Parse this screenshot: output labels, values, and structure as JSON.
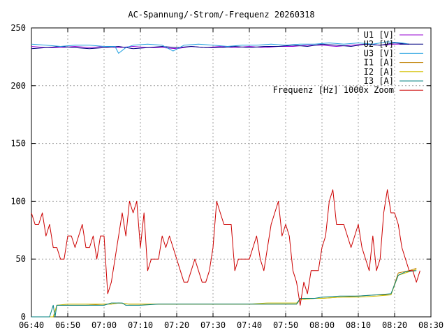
{
  "chart_data": {
    "type": "line",
    "title": "AC-Spannung/-Strom/-Frequenz 20260318",
    "xlabel": "",
    "ylabel": "",
    "xlim": [
      "06:40",
      "08:30"
    ],
    "ylim": [
      0,
      250
    ],
    "x_ticks": [
      "06:40",
      "06:50",
      "07:00",
      "07:10",
      "07:20",
      "07:30",
      "07:40",
      "07:50",
      "08:00",
      "08:10",
      "08:20",
      "08:30"
    ],
    "y_ticks": [
      "0",
      "50",
      "100",
      "150",
      "200",
      "250"
    ],
    "grid": true,
    "legend_position": "top-right",
    "series": [
      {
        "name": "U1 [V]",
        "color": "#9400d3",
        "points": [
          [
            "06:40",
            234
          ],
          [
            "06:44",
            233
          ],
          [
            "06:48",
            233
          ],
          [
            "06:52",
            234
          ],
          [
            "06:56",
            233
          ],
          [
            "07:00",
            234
          ],
          [
            "07:04",
            233
          ],
          [
            "07:08",
            234
          ],
          [
            "07:12",
            233
          ],
          [
            "07:16",
            233
          ],
          [
            "07:20",
            232
          ],
          [
            "07:24",
            234
          ],
          [
            "07:28",
            233
          ],
          [
            "07:32",
            234
          ],
          [
            "07:36",
            233
          ],
          [
            "07:40",
            234
          ],
          [
            "07:44",
            233
          ],
          [
            "07:48",
            234
          ],
          [
            "07:52",
            234
          ],
          [
            "07:56",
            235
          ],
          [
            "08:00",
            235
          ],
          [
            "08:04",
            234
          ],
          [
            "08:08",
            235
          ],
          [
            "08:12",
            236
          ],
          [
            "08:16",
            235
          ],
          [
            "08:20",
            236
          ],
          [
            "08:24",
            236
          ]
        ]
      },
      {
        "name": "U2 [V]",
        "color": "#000080",
        "points": [
          [
            "06:40",
            232
          ],
          [
            "06:44",
            233
          ],
          [
            "06:48",
            234
          ],
          [
            "06:52",
            233
          ],
          [
            "06:56",
            232
          ],
          [
            "07:00",
            233
          ],
          [
            "07:04",
            234
          ],
          [
            "07:08",
            232
          ],
          [
            "07:12",
            233
          ],
          [
            "07:16",
            234
          ],
          [
            "07:20",
            233
          ],
          [
            "07:24",
            234
          ],
          [
            "07:28",
            233
          ],
          [
            "07:32",
            233
          ],
          [
            "07:36",
            234
          ],
          [
            "07:40",
            233
          ],
          [
            "07:44",
            234
          ],
          [
            "07:48",
            234
          ],
          [
            "07:52",
            235
          ],
          [
            "07:56",
            234
          ],
          [
            "08:00",
            236
          ],
          [
            "08:04",
            235
          ],
          [
            "08:08",
            234
          ],
          [
            "08:12",
            236
          ],
          [
            "08:16",
            235
          ],
          [
            "08:20",
            237
          ],
          [
            "08:24",
            236
          ]
        ]
      },
      {
        "name": "U3 [V]",
        "color": "#20a0e0",
        "points": [
          [
            "06:40",
            236
          ],
          [
            "06:44",
            235
          ],
          [
            "06:48",
            234
          ],
          [
            "06:52",
            235
          ],
          [
            "06:56",
            235
          ],
          [
            "07:00",
            234
          ],
          [
            "07:03",
            234
          ],
          [
            "07:04",
            228
          ],
          [
            "07:06",
            233
          ],
          [
            "07:08",
            235
          ],
          [
            "07:12",
            236
          ],
          [
            "07:16",
            235
          ],
          [
            "07:19",
            230
          ],
          [
            "07:22",
            235
          ],
          [
            "07:26",
            236
          ],
          [
            "07:30",
            235
          ],
          [
            "07:34",
            234
          ],
          [
            "07:38",
            235
          ],
          [
            "07:42",
            235
          ],
          [
            "07:46",
            236
          ],
          [
            "07:50",
            235
          ],
          [
            "07:54",
            236
          ],
          [
            "07:58",
            236
          ],
          [
            "08:02",
            237
          ],
          [
            "08:06",
            236
          ],
          [
            "08:10",
            237
          ],
          [
            "08:14",
            236
          ],
          [
            "08:18",
            238
          ],
          [
            "08:22",
            237
          ],
          [
            "08:24",
            236
          ]
        ]
      },
      {
        "name": "I1 [A]",
        "color": "#c08000",
        "points": [
          [
            "06:40",
            0
          ],
          [
            "06:46",
            0
          ],
          [
            "06:47",
            10
          ],
          [
            "06:50",
            10
          ],
          [
            "06:55",
            10
          ],
          [
            "07:00",
            11
          ],
          [
            "07:02",
            11
          ],
          [
            "07:04",
            12
          ],
          [
            "07:07",
            11
          ],
          [
            "07:10",
            11
          ],
          [
            "07:15",
            11
          ],
          [
            "07:20",
            11
          ],
          [
            "07:25",
            11
          ],
          [
            "07:30",
            11
          ],
          [
            "07:35",
            11
          ],
          [
            "07:40",
            11
          ],
          [
            "07:45",
            11
          ],
          [
            "07:50",
            11
          ],
          [
            "07:53",
            11
          ],
          [
            "07:54",
            15
          ],
          [
            "07:58",
            16
          ],
          [
            "08:00",
            16
          ],
          [
            "08:05",
            17
          ],
          [
            "08:10",
            18
          ],
          [
            "08:15",
            19
          ],
          [
            "08:19",
            19
          ],
          [
            "08:21",
            38
          ],
          [
            "08:24",
            40
          ],
          [
            "08:26",
            42
          ]
        ]
      },
      {
        "name": "I2 [A]",
        "color": "#d4c000",
        "points": [
          [
            "06:40",
            0
          ],
          [
            "06:46",
            0
          ],
          [
            "06:47",
            10
          ],
          [
            "06:50",
            11
          ],
          [
            "06:55",
            11
          ],
          [
            "07:00",
            11
          ],
          [
            "07:02",
            11
          ],
          [
            "07:04",
            12
          ],
          [
            "07:07",
            11
          ],
          [
            "07:10",
            11
          ],
          [
            "07:15",
            11
          ],
          [
            "07:20",
            11
          ],
          [
            "07:25",
            11
          ],
          [
            "07:30",
            11
          ],
          [
            "07:35",
            11
          ],
          [
            "07:40",
            11
          ],
          [
            "07:45",
            12
          ],
          [
            "07:50",
            12
          ],
          [
            "07:53",
            12
          ],
          [
            "07:54",
            15
          ],
          [
            "07:58",
            16
          ],
          [
            "08:00",
            16
          ],
          [
            "08:05",
            17
          ],
          [
            "08:10",
            17
          ],
          [
            "08:15",
            18
          ],
          [
            "08:19",
            19
          ],
          [
            "08:21",
            36
          ],
          [
            "08:24",
            39
          ],
          [
            "08:26",
            41
          ]
        ]
      },
      {
        "name": "I3 [A]",
        "color": "#008080",
        "points": [
          [
            "06:40",
            0
          ],
          [
            "06:45",
            0
          ],
          [
            "06:46",
            10
          ],
          [
            "06:46.5",
            0
          ],
          [
            "06:47",
            10
          ],
          [
            "06:50",
            10
          ],
          [
            "06:55",
            10
          ],
          [
            "07:00",
            10
          ],
          [
            "07:02",
            12
          ],
          [
            "07:05",
            12
          ],
          [
            "07:06",
            10
          ],
          [
            "07:10",
            10
          ],
          [
            "07:15",
            11
          ],
          [
            "07:20",
            11
          ],
          [
            "07:25",
            11
          ],
          [
            "07:30",
            11
          ],
          [
            "07:35",
            11
          ],
          [
            "07:40",
            11
          ],
          [
            "07:45",
            11
          ],
          [
            "07:50",
            11
          ],
          [
            "07:53",
            11
          ],
          [
            "07:54",
            16
          ],
          [
            "07:58",
            16
          ],
          [
            "08:00",
            17
          ],
          [
            "08:05",
            18
          ],
          [
            "08:10",
            18
          ],
          [
            "08:15",
            19
          ],
          [
            "08:19",
            20
          ],
          [
            "08:21",
            36
          ],
          [
            "08:23",
            39
          ],
          [
            "08:26",
            40
          ]
        ]
      },
      {
        "name": "Frequenz [Hz] 1000x Zoom",
        "color": "#cc0000",
        "points": [
          [
            "06:40",
            90
          ],
          [
            "06:41",
            80
          ],
          [
            "06:42",
            80
          ],
          [
            "06:43",
            90
          ],
          [
            "06:44",
            70
          ],
          [
            "06:45",
            80
          ],
          [
            "06:46",
            60
          ],
          [
            "06:47",
            60
          ],
          [
            "06:48",
            50
          ],
          [
            "06:49",
            50
          ],
          [
            "06:50",
            70
          ],
          [
            "06:51",
            70
          ],
          [
            "06:52",
            60
          ],
          [
            "06:54",
            80
          ],
          [
            "06:55",
            60
          ],
          [
            "06:56",
            60
          ],
          [
            "06:57",
            70
          ],
          [
            "06:58",
            50
          ],
          [
            "06:59",
            70
          ],
          [
            "07:00",
            70
          ],
          [
            "07:01",
            20
          ],
          [
            "07:02",
            30
          ],
          [
            "07:04",
            70
          ],
          [
            "07:05",
            90
          ],
          [
            "07:06",
            70
          ],
          [
            "07:07",
            100
          ],
          [
            "07:08",
            90
          ],
          [
            "07:09",
            100
          ],
          [
            "07:10",
            60
          ],
          [
            "07:11",
            90
          ],
          [
            "07:12",
            40
          ],
          [
            "07:13",
            50
          ],
          [
            "07:15",
            50
          ],
          [
            "07:16",
            70
          ],
          [
            "07:17",
            60
          ],
          [
            "07:18",
            70
          ],
          [
            "07:19",
            60
          ],
          [
            "07:21",
            40
          ],
          [
            "07:22",
            30
          ],
          [
            "07:23",
            30
          ],
          [
            "07:24",
            40
          ],
          [
            "07:25",
            50
          ],
          [
            "07:26",
            40
          ],
          [
            "07:27",
            30
          ],
          [
            "07:28",
            30
          ],
          [
            "07:29",
            40
          ],
          [
            "07:30",
            60
          ],
          [
            "07:31",
            100
          ],
          [
            "07:32",
            90
          ],
          [
            "07:33",
            80
          ],
          [
            "07:35",
            80
          ],
          [
            "07:36",
            40
          ],
          [
            "07:37",
            50
          ],
          [
            "07:39",
            50
          ],
          [
            "07:40",
            50
          ],
          [
            "07:41",
            60
          ],
          [
            "07:42",
            70
          ],
          [
            "07:43",
            50
          ],
          [
            "07:44",
            40
          ],
          [
            "07:45",
            60
          ],
          [
            "07:46",
            80
          ],
          [
            "07:47",
            90
          ],
          [
            "07:48",
            100
          ],
          [
            "07:49",
            70
          ],
          [
            "07:50",
            80
          ],
          [
            "07:51",
            70
          ],
          [
            "07:52",
            40
          ],
          [
            "07:53",
            30
          ],
          [
            "07:54",
            10
          ],
          [
            "07:55",
            30
          ],
          [
            "07:56",
            20
          ],
          [
            "07:57",
            40
          ],
          [
            "07:58",
            40
          ],
          [
            "07:59",
            40
          ],
          [
            "08:00",
            60
          ],
          [
            "08:01",
            70
          ],
          [
            "08:02",
            100
          ],
          [
            "08:03",
            110
          ],
          [
            "08:04",
            80
          ],
          [
            "08:05",
            80
          ],
          [
            "08:06",
            80
          ],
          [
            "08:07",
            70
          ],
          [
            "08:08",
            60
          ],
          [
            "08:09",
            70
          ],
          [
            "08:10",
            80
          ],
          [
            "08:11",
            60
          ],
          [
            "08:12",
            50
          ],
          [
            "08:13",
            40
          ],
          [
            "08:14",
            70
          ],
          [
            "08:15",
            40
          ],
          [
            "08:16",
            50
          ],
          [
            "08:17",
            90
          ],
          [
            "08:18",
            110
          ],
          [
            "08:19",
            90
          ],
          [
            "08:20",
            90
          ],
          [
            "08:21",
            80
          ],
          [
            "08:22",
            60
          ],
          [
            "08:23",
            50
          ],
          [
            "08:24",
            40
          ],
          [
            "08:25",
            40
          ],
          [
            "08:26",
            30
          ],
          [
            "08:27",
            40
          ]
        ]
      }
    ]
  }
}
